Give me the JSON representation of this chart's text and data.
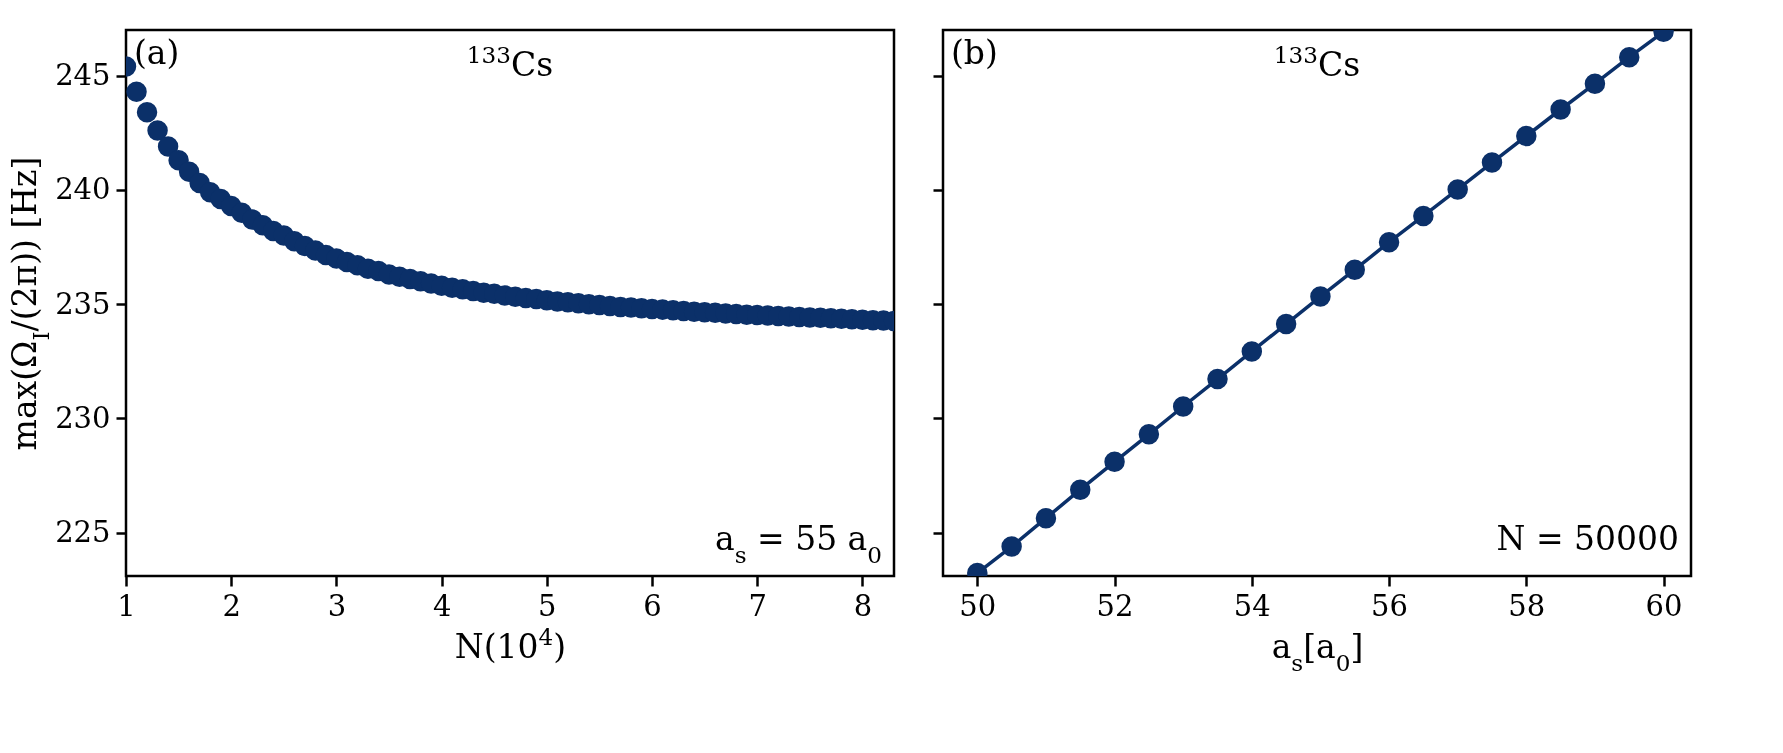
{
  "chart_data": [
    {
      "type": "scatter",
      "xlabel": "N(10$^{4}$)",
      "ylabel": "max(Ω$_{I}$/(2π)) [Hz]",
      "marker": "circle",
      "grid": false,
      "xlim": [
        1,
        8.3
      ],
      "xticks": [
        1,
        2,
        3,
        4,
        5,
        6,
        7,
        8
      ],
      "ylim": [
        223.1,
        247
      ],
      "yticks": [
        225,
        230,
        235,
        240,
        245
      ],
      "annotations": [
        "(a)",
        "$^{133}$Cs",
        "a$_{s}$ = 55 a$_{0}$"
      ],
      "x": [
        1.0,
        1.1,
        1.2,
        1.3,
        1.4,
        1.5,
        1.6,
        1.7,
        1.8,
        1.9,
        2.0,
        2.1,
        2.2,
        2.3,
        2.4,
        2.5,
        2.6,
        2.7,
        2.8,
        2.9,
        3.0,
        3.1,
        3.2,
        3.3,
        3.4,
        3.5,
        3.6,
        3.7,
        3.8,
        3.9,
        4.0,
        4.1,
        4.2,
        4.3,
        4.4,
        4.5,
        4.6,
        4.7,
        4.8,
        4.9,
        5.0,
        5.1,
        5.2,
        5.3,
        5.4,
        5.5,
        5.6,
        5.7,
        5.8,
        5.9,
        6.0,
        6.1,
        6.2,
        6.3,
        6.4,
        6.5,
        6.6,
        6.7,
        6.8,
        6.9,
        7.0,
        7.1,
        7.2,
        7.3,
        7.4,
        7.5,
        7.6,
        7.7,
        7.8,
        7.9,
        8.0,
        8.1,
        8.2,
        8.3
      ],
      "series": [
        {
          "color": "#0b3069",
          "values": [
            245.4,
            244.3,
            243.4,
            242.6,
            241.9,
            241.3,
            240.8,
            240.3,
            239.9,
            239.6,
            239.3,
            239.0,
            238.7,
            238.45,
            238.2,
            238.0,
            237.75,
            237.55,
            237.35,
            237.15,
            237.0,
            236.85,
            236.7,
            236.55,
            236.45,
            236.3,
            236.2,
            236.1,
            236.0,
            235.9,
            235.8,
            235.72,
            235.65,
            235.58,
            235.5,
            235.45,
            235.38,
            235.32,
            235.27,
            235.22,
            235.17,
            235.12,
            235.08,
            235.04,
            235.0,
            234.96,
            234.92,
            234.88,
            234.85,
            234.82,
            234.79,
            234.76,
            234.73,
            234.7,
            234.67,
            234.64,
            234.62,
            234.59,
            234.57,
            234.54,
            234.52,
            234.5,
            234.48,
            234.46,
            234.44,
            234.42,
            234.4,
            234.38,
            234.36,
            234.34,
            234.32,
            234.3,
            234.28,
            234.26
          ]
        }
      ]
    },
    {
      "type": "line",
      "xlabel": "a$_{s}$[a$_{0}$]",
      "marker": "circle",
      "line_style": "solid",
      "grid": false,
      "tick_labels": "x",
      "xlim": [
        49.5,
        60.4
      ],
      "xticks": [
        50,
        52,
        54,
        56,
        58,
        60
      ],
      "ylim": [
        223.1,
        247
      ],
      "yticks": [
        225,
        230,
        235,
        240,
        245
      ],
      "annotations": [
        "(b)",
        "$^{133}$Cs",
        "N = 50000"
      ],
      "x": [
        50,
        50.5,
        51,
        51.5,
        52,
        52.5,
        53,
        53.5,
        54,
        54.5,
        55,
        55.5,
        56,
        56.5,
        57,
        57.5,
        58,
        58.5,
        59,
        59.5,
        60
      ],
      "series": [
        {
          "color": "#0b3069",
          "values": [
            223.23,
            224.39,
            225.63,
            226.88,
            228.1,
            229.3,
            230.52,
            231.72,
            232.93,
            234.13,
            235.33,
            236.51,
            237.71,
            238.86,
            240.02,
            241.2,
            242.36,
            243.52,
            244.65,
            245.81,
            246.92
          ]
        }
      ]
    }
  ]
}
